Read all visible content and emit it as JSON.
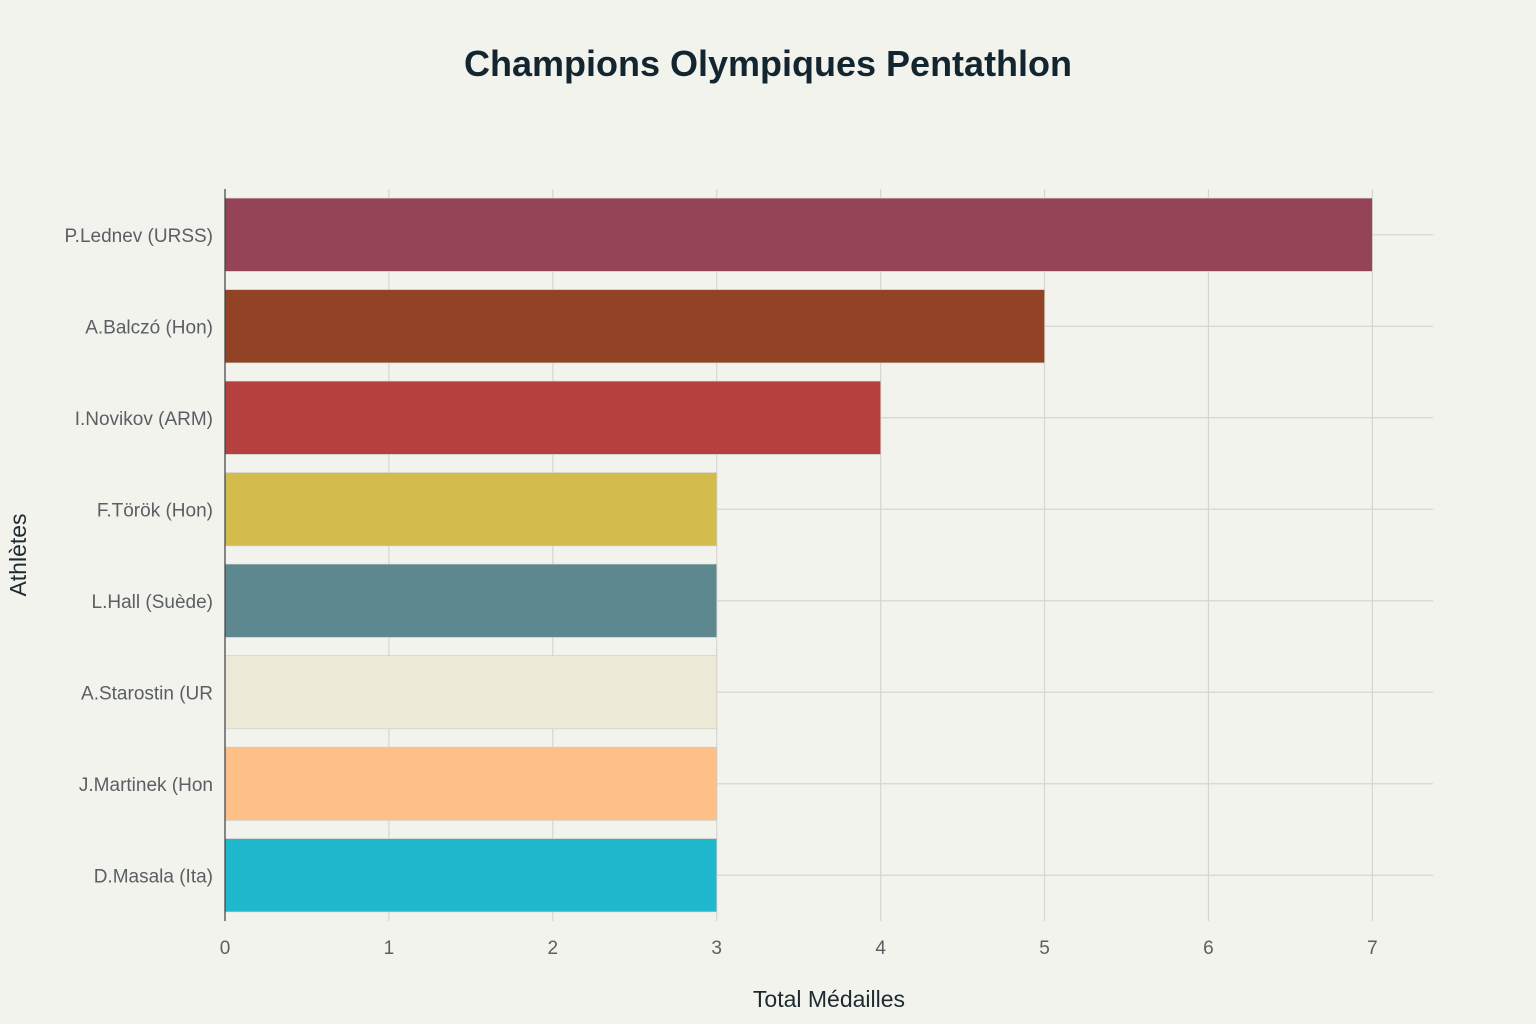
{
  "chart_data": {
    "type": "bar",
    "orientation": "horizontal",
    "title": "Champions Olympiques Pentathlon",
    "xlabel": "Total Médailles",
    "ylabel": "Athlètes",
    "categories": [
      "P.Lednev (URSS)",
      "A.Balczó (Hon)",
      "I.Novikov (ARM)",
      "F.Török (Hon)",
      "L.Hall (Suède)",
      "A.Starostin (UR",
      "J.Martinek (Hon",
      "D.Masala (Ita)"
    ],
    "values": [
      7,
      5,
      4,
      3,
      3,
      3,
      3,
      3
    ],
    "colors": [
      "#954457",
      "#934325",
      "#b5403d",
      "#d3bb4e",
      "#5e8890",
      "#ecead6",
      "#fec087",
      "#20b8cd"
    ],
    "xlim": [
      0,
      7.37
    ],
    "xticks": [
      "0",
      "1",
      "2",
      "3",
      "4",
      "5",
      "6",
      "7"
    ],
    "grid": true,
    "legend": "none"
  }
}
